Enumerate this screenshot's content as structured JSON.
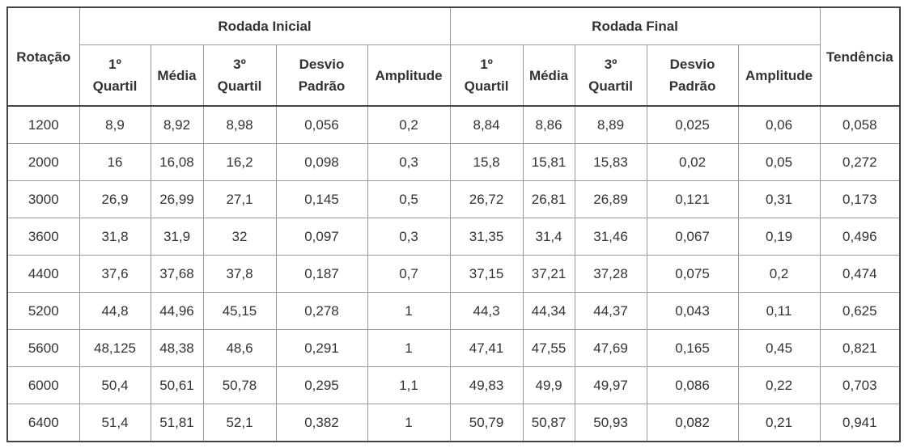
{
  "table": {
    "corner": "Rotação",
    "groups": [
      {
        "title": "Rodada Inicial",
        "columns": [
          "1º Quartil",
          "Média",
          "3º Quartil",
          "Desvio Padrão",
          "Amplitude"
        ]
      },
      {
        "title": "Rodada Final",
        "columns": [
          "1º Quartil",
          "Média",
          "3º Quartil",
          "Desvio Padrão",
          "Amplitude"
        ]
      }
    ],
    "trend": "Tendência",
    "rows": [
      [
        "1200",
        "8,9",
        "8,92",
        "8,98",
        "0,056",
        "0,2",
        "8,84",
        "8,86",
        "8,89",
        "0,025",
        "0,06",
        "0,058"
      ],
      [
        "2000",
        "16",
        "16,08",
        "16,2",
        "0,098",
        "0,3",
        "15,8",
        "15,81",
        "15,83",
        "0,02",
        "0,05",
        "0,272"
      ],
      [
        "3000",
        "26,9",
        "26,99",
        "27,1",
        "0,145",
        "0,5",
        "26,72",
        "26,81",
        "26,89",
        "0,121",
        "0,31",
        "0,173"
      ],
      [
        "3600",
        "31,8",
        "31,9",
        "32",
        "0,097",
        "0,3",
        "31,35",
        "31,4",
        "31,46",
        "0,067",
        "0,19",
        "0,496"
      ],
      [
        "4400",
        "37,6",
        "37,68",
        "37,8",
        "0,187",
        "0,7",
        "37,15",
        "37,21",
        "37,28",
        "0,075",
        "0,2",
        "0,474"
      ],
      [
        "5200",
        "44,8",
        "44,96",
        "45,15",
        "0,278",
        "1",
        "44,3",
        "44,34",
        "44,37",
        "0,043",
        "0,11",
        "0,625"
      ],
      [
        "5600",
        "48,125",
        "48,38",
        "48,6",
        "0,291",
        "1",
        "47,41",
        "47,55",
        "47,69",
        "0,165",
        "0,45",
        "0,821"
      ],
      [
        "6000",
        "50,4",
        "50,61",
        "50,78",
        "0,295",
        "1,1",
        "49,83",
        "49,9",
        "49,97",
        "0,086",
        "0,22",
        "0,703"
      ],
      [
        "6400",
        "51,4",
        "51,81",
        "52,1",
        "0,382",
        "1",
        "50,79",
        "50,87",
        "50,93",
        "0,082",
        "0,21",
        "0,941"
      ]
    ]
  }
}
